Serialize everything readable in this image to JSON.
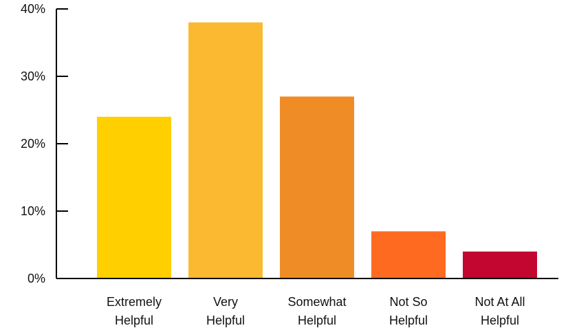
{
  "chart_data": {
    "type": "bar",
    "title": "",
    "xlabel": "",
    "ylabel": "",
    "ylim": [
      0,
      40
    ],
    "yticks": [
      {
        "value": 0,
        "label": "0%"
      },
      {
        "value": 10,
        "label": "10%"
      },
      {
        "value": 20,
        "label": "20%"
      },
      {
        "value": 30,
        "label": "30%"
      },
      {
        "value": 40,
        "label": "40%"
      }
    ],
    "grid": false,
    "legend": "none",
    "categories": [
      {
        "line1": "Extremely",
        "line2": "Helpful"
      },
      {
        "line1": "Very",
        "line2": "Helpful"
      },
      {
        "line1": "Somewhat",
        "line2": "Helpful"
      },
      {
        "line1": "Not So",
        "line2": "Helpful"
      },
      {
        "line1": "Not At All",
        "line2": "Helpful"
      }
    ],
    "values": [
      24,
      38,
      27,
      7,
      4
    ],
    "colors": [
      "#FFCF00",
      "#FBB931",
      "#F08C26",
      "#FF6A21",
      "#C2062F"
    ]
  }
}
